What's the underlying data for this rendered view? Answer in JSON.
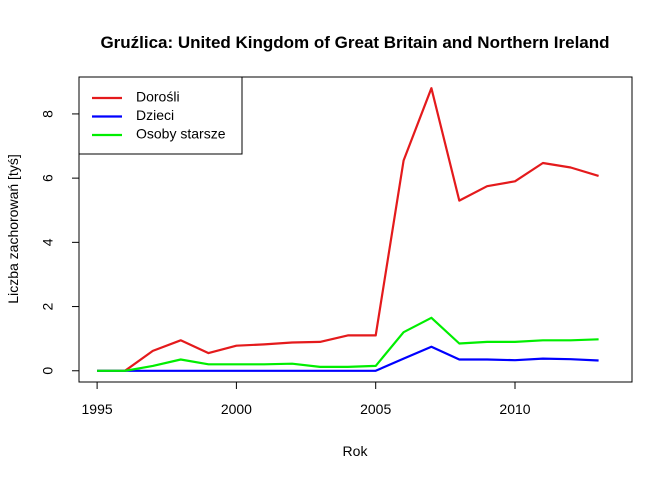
{
  "chart_data": {
    "type": "line",
    "title": "Gruźlica: United Kingdom of Great Britain and Northern Ireland",
    "xlabel": "Rok",
    "ylabel": "Liczba zachorowań [tyś]",
    "xlim": [
      1994.35,
      2014.2
    ],
    "ylim": [
      -0.35,
      9.15
    ],
    "x_ticks": [
      1995,
      2000,
      2005,
      2010
    ],
    "x_tick_labels": [
      "1995",
      "2000",
      "2005",
      "2010"
    ],
    "y_ticks": [
      0,
      2,
      4,
      6,
      8
    ],
    "y_tick_labels": [
      "0",
      "2",
      "4",
      "6",
      "8"
    ],
    "legend_position": "top-left",
    "x": [
      1995,
      1996,
      1997,
      1998,
      1999,
      2000,
      2001,
      2002,
      2003,
      2004,
      2005,
      2006,
      2007,
      2008,
      2009,
      2010,
      2011,
      2012,
      2013
    ],
    "series": [
      {
        "name": "Dorośli",
        "color": "#e41a1c",
        "values": [
          0.0,
          0.0,
          0.62,
          0.95,
          0.55,
          0.78,
          0.82,
          0.88,
          0.9,
          1.1,
          1.1,
          6.55,
          8.8,
          5.3,
          5.75,
          5.9,
          6.47,
          6.33,
          6.07
        ]
      },
      {
        "name": "Dzieci",
        "color": "#0000ff",
        "values": [
          0.0,
          0.0,
          0.0,
          0.0,
          0.0,
          0.0,
          0.0,
          0.0,
          0.0,
          0.0,
          0.0,
          0.38,
          0.75,
          0.35,
          0.35,
          0.33,
          0.38,
          0.36,
          0.32
        ]
      },
      {
        "name": "Osoby starsze",
        "color": "#00ee00",
        "values": [
          0.0,
          0.0,
          0.15,
          0.35,
          0.2,
          0.2,
          0.2,
          0.22,
          0.12,
          0.12,
          0.15,
          1.2,
          1.65,
          0.85,
          0.9,
          0.9,
          0.95,
          0.95,
          0.98
        ]
      }
    ]
  }
}
